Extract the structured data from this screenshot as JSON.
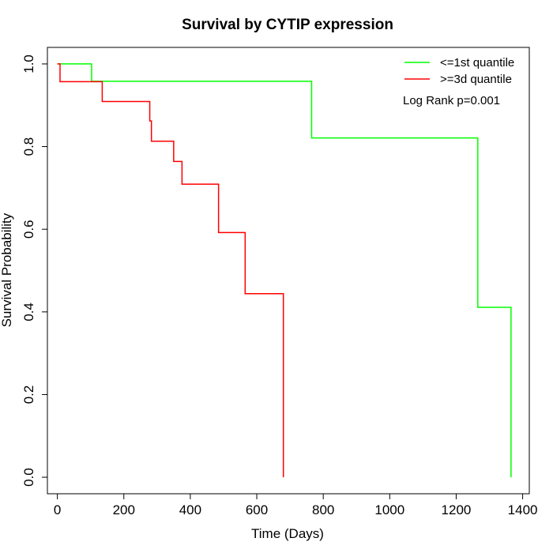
{
  "chart_data": {
    "type": "line",
    "subtype": "kaplan-meier step",
    "title": "Survival by CYTIP expression",
    "xlabel": "Time (Days)",
    "ylabel": "Survival Probability",
    "xlim": [
      -30,
      1420
    ],
    "ylim": [
      -0.04,
      1.04
    ],
    "x_ticks": [
      0,
      200,
      400,
      600,
      800,
      1000,
      1200,
      1400
    ],
    "y_ticks": [
      0.0,
      0.2,
      0.4,
      0.6,
      0.8,
      1.0
    ],
    "y_tick_labels": [
      "0.0",
      "0.2",
      "0.4",
      "0.6",
      "0.8",
      "1.0"
    ],
    "grid": false,
    "legend_position": "top-right",
    "series": [
      {
        "name": "<=1st quantile",
        "color": "#00ff00",
        "x": [
          0,
          103,
          765,
          1265,
          1365
        ],
        "y": [
          1.0,
          0.958,
          0.821,
          0.411,
          0.0
        ]
      },
      {
        "name": ">=3d quantile",
        "color": "#ff0000",
        "x": [
          0,
          8,
          135,
          278,
          283,
          350,
          375,
          485,
          565,
          680
        ],
        "y": [
          1.0,
          0.957,
          0.909,
          0.862,
          0.813,
          0.764,
          0.709,
          0.592,
          0.444,
          0.0
        ]
      }
    ],
    "annotations": [
      "Log Rank p=0.001"
    ]
  }
}
